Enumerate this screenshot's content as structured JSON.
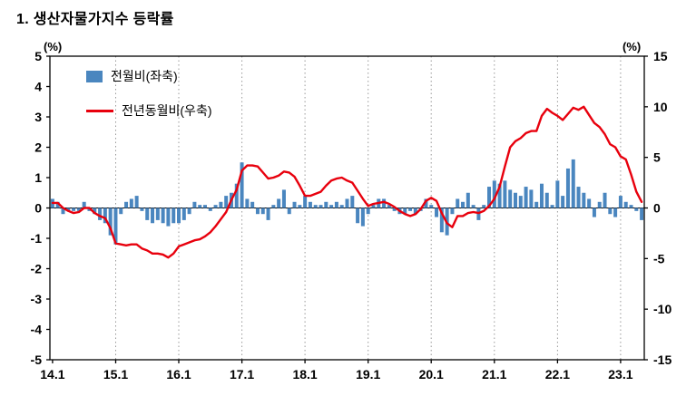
{
  "title": "1. 생산자물가지수 등락률",
  "axes": {
    "left_unit": "(%)",
    "right_unit": "(%)"
  },
  "legend": {
    "bar_label": "전월비(좌축)",
    "line_label": "전년동월비(우축)"
  },
  "colors": {
    "bar": "#4a86bf",
    "line": "#e8000d",
    "grid": "#9a9a9a",
    "axis": "#000000"
  },
  "chart_data": {
    "type": "bar",
    "title": "1. 생산자물가지수 등락률",
    "x_start": "2014.1",
    "x_freq": "monthly",
    "x_tick_labels": [
      "14.1",
      "15.1",
      "16.1",
      "17.1",
      "18.1",
      "19.1",
      "20.1",
      "21.1",
      "22.1",
      "23.1"
    ],
    "x_tick_indices": [
      0,
      12,
      24,
      36,
      48,
      60,
      72,
      84,
      96,
      108
    ],
    "left_axis": {
      "min": -5,
      "max": 5,
      "ticks": [
        5,
        4,
        3,
        2,
        1,
        0,
        -1,
        -2,
        -3,
        -4,
        -5
      ],
      "unit": "(%)"
    },
    "right_axis": {
      "min": -15,
      "max": 15,
      "ticks": [
        15,
        10,
        5,
        0,
        -5,
        -10,
        -15
      ],
      "unit": "(%)"
    },
    "grid": "vertical dotted lines at yearly ticks",
    "legend_position": "top-left inside plot",
    "series": [
      {
        "name": "전월비(좌축)",
        "type": "bar",
        "axis": "left",
        "values": [
          0.3,
          0.2,
          -0.2,
          -0.1,
          -0.1,
          -0.1,
          0.2,
          -0.1,
          -0.2,
          -0.4,
          -0.5,
          -0.9,
          -1.2,
          -0.2,
          0.2,
          0.3,
          0.4,
          -0.1,
          -0.4,
          -0.5,
          -0.4,
          -0.5,
          -0.6,
          -0.5,
          -0.5,
          -0.4,
          -0.2,
          0.2,
          0.1,
          0.1,
          -0.1,
          0.1,
          0.2,
          0.4,
          0.5,
          0.8,
          1.5,
          0.3,
          0.2,
          -0.2,
          -0.2,
          -0.4,
          0.1,
          0.3,
          0.6,
          -0.2,
          0.2,
          0.1,
          0.4,
          0.2,
          0.1,
          0.1,
          0.2,
          0.1,
          0.2,
          0.1,
          0.3,
          0.4,
          -0.5,
          -0.6,
          -0.2,
          0.1,
          0.3,
          0.3,
          0.1,
          -0.1,
          -0.2,
          -0.2,
          -0.1,
          -0.2,
          -0.1,
          0.3,
          0.1,
          -0.3,
          -0.8,
          -0.9,
          -0.2,
          0.3,
          0.2,
          0.5,
          0.1,
          -0.4,
          0.1,
          0.7,
          0.9,
          0.8,
          0.9,
          0.6,
          0.5,
          0.4,
          0.7,
          0.6,
          0.2,
          0.8,
          0.5,
          0.1,
          0.9,
          0.4,
          1.3,
          1.6,
          0.7,
          0.5,
          0.3,
          -0.3,
          0.2,
          0.5,
          -0.2,
          -0.3,
          0.4,
          0.2,
          0.1,
          -0.1,
          -0.4
        ]
      },
      {
        "name": "전년동월비(우축)",
        "type": "line",
        "axis": "right",
        "values": [
          0.5,
          0.5,
          0.0,
          -0.3,
          -0.5,
          -0.4,
          0.0,
          0.0,
          -0.5,
          -0.8,
          -1.0,
          -2.0,
          -3.5,
          -3.6,
          -3.7,
          -3.6,
          -3.6,
          -4.0,
          -4.2,
          -4.5,
          -4.5,
          -4.6,
          -4.9,
          -4.5,
          -3.8,
          -3.6,
          -3.4,
          -3.2,
          -3.1,
          -2.8,
          -2.4,
          -1.8,
          -1.1,
          -0.4,
          0.8,
          1.8,
          3.7,
          4.2,
          4.2,
          4.1,
          3.5,
          2.9,
          3.0,
          3.2,
          3.6,
          3.5,
          3.1,
          2.2,
          1.2,
          1.2,
          1.4,
          1.6,
          2.2,
          2.7,
          2.9,
          3.0,
          2.7,
          2.5,
          1.7,
          0.9,
          0.2,
          0.4,
          0.5,
          0.6,
          0.4,
          0.1,
          -0.3,
          -0.6,
          -0.8,
          -0.6,
          -0.1,
          0.7,
          1.0,
          0.7,
          -0.5,
          -1.5,
          -1.9,
          -0.8,
          -0.8,
          -0.5,
          -0.4,
          -0.5,
          -0.3,
          0.2,
          0.9,
          2.1,
          4.1,
          6.0,
          6.6,
          6.9,
          7.4,
          7.6,
          7.6,
          9.1,
          9.8,
          9.4,
          9.1,
          8.7,
          9.3,
          9.9,
          9.7,
          10.0,
          9.2,
          8.4,
          8.0,
          7.3,
          6.3,
          6.0,
          5.1,
          4.8,
          3.3,
          1.6,
          0.6
        ]
      }
    ]
  }
}
